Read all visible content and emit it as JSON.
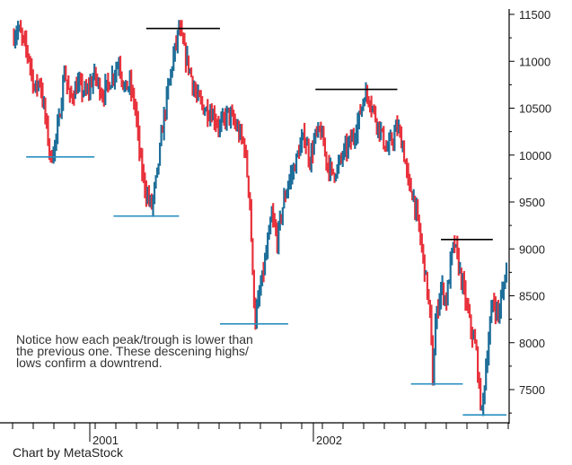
{
  "chart_data": {
    "type": "ohlc",
    "y_ticks": [
      7500,
      8000,
      8500,
      9000,
      9500,
      10000,
      10500,
      11000,
      11500
    ],
    "ylim": [
      7150,
      11650
    ],
    "x_tick_labels": [
      "2001",
      "2002"
    ],
    "series": [
      {
        "t": 0,
        "close": 11250
      },
      {
        "t": 2,
        "close": 11350
      },
      {
        "t": 4,
        "close": 11200
      },
      {
        "t": 6,
        "close": 11050
      },
      {
        "t": 8,
        "close": 10700
      },
      {
        "t": 10,
        "close": 10800
      },
      {
        "t": 12,
        "close": 10400
      },
      {
        "t": 14,
        "close": 9950
      },
      {
        "t": 15,
        "close": 10050
      },
      {
        "t": 17,
        "close": 10350
      },
      {
        "t": 19,
        "close": 10900
      },
      {
        "t": 21,
        "close": 10600
      },
      {
        "t": 24,
        "close": 10750
      },
      {
        "t": 27,
        "close": 10650
      },
      {
        "t": 30,
        "close": 10850
      },
      {
        "t": 33,
        "close": 10650
      },
      {
        "t": 36,
        "close": 10800
      },
      {
        "t": 39,
        "close": 11000
      },
      {
        "t": 41,
        "close": 10700
      },
      {
        "t": 43,
        "close": 10750
      },
      {
        "t": 45,
        "close": 10500
      },
      {
        "t": 47,
        "close": 9900
      },
      {
        "t": 49,
        "close": 9600
      },
      {
        "t": 51,
        "close": 9450
      },
      {
        "t": 53,
        "close": 9800
      },
      {
        "t": 55,
        "close": 10300
      },
      {
        "t": 57,
        "close": 10700
      },
      {
        "t": 59,
        "close": 11050
      },
      {
        "t": 61,
        "close": 11350
      },
      {
        "t": 63,
        "close": 11100
      },
      {
        "t": 65,
        "close": 10900
      },
      {
        "t": 67,
        "close": 10650
      },
      {
        "t": 70,
        "close": 10500
      },
      {
        "t": 73,
        "close": 10450
      },
      {
        "t": 76,
        "close": 10300
      },
      {
        "t": 79,
        "close": 10450
      },
      {
        "t": 82,
        "close": 10300
      },
      {
        "t": 85,
        "close": 10100
      },
      {
        "t": 87,
        "close": 9500
      },
      {
        "t": 88,
        "close": 8700
      },
      {
        "t": 89,
        "close": 8250
      },
      {
        "t": 91,
        "close": 8600
      },
      {
        "t": 93,
        "close": 8950
      },
      {
        "t": 95,
        "close": 9350
      },
      {
        "t": 97,
        "close": 9100
      },
      {
        "t": 99,
        "close": 9450
      },
      {
        "t": 101,
        "close": 9700
      },
      {
        "t": 103,
        "close": 9850
      },
      {
        "t": 105,
        "close": 10050
      },
      {
        "t": 107,
        "close": 10200
      },
      {
        "t": 109,
        "close": 9950
      },
      {
        "t": 111,
        "close": 10200
      },
      {
        "t": 113,
        "close": 10250
      },
      {
        "t": 115,
        "close": 9950
      },
      {
        "t": 117,
        "close": 9800
      },
      {
        "t": 119,
        "close": 9850
      },
      {
        "t": 121,
        "close": 10000
      },
      {
        "t": 123,
        "close": 10100
      },
      {
        "t": 125,
        "close": 10200
      },
      {
        "t": 127,
        "close": 10400
      },
      {
        "t": 129,
        "close": 10650
      },
      {
        "t": 131,
        "close": 10600
      },
      {
        "t": 133,
        "close": 10400
      },
      {
        "t": 135,
        "close": 10250
      },
      {
        "t": 137,
        "close": 10050
      },
      {
        "t": 139,
        "close": 10150
      },
      {
        "t": 141,
        "close": 10300
      },
      {
        "t": 143,
        "close": 10100
      },
      {
        "t": 145,
        "close": 9700
      },
      {
        "t": 147,
        "close": 9550
      },
      {
        "t": 149,
        "close": 9200
      },
      {
        "t": 151,
        "close": 8800
      },
      {
        "t": 153,
        "close": 8300
      },
      {
        "t": 154,
        "close": 7600
      },
      {
        "t": 155,
        "close": 8200
      },
      {
        "t": 157,
        "close": 8600
      },
      {
        "t": 159,
        "close": 8450
      },
      {
        "t": 161,
        "close": 8950
      },
      {
        "t": 162,
        "close": 9050
      },
      {
        "t": 164,
        "close": 8750
      },
      {
        "t": 166,
        "close": 8450
      },
      {
        "t": 168,
        "close": 8150
      },
      {
        "t": 170,
        "close": 7900
      },
      {
        "t": 171,
        "close": 7500
      },
      {
        "t": 172,
        "close": 7250
      },
      {
        "t": 174,
        "close": 7900
      },
      {
        "t": 176,
        "close": 8450
      },
      {
        "t": 178,
        "close": 8300
      },
      {
        "t": 180,
        "close": 8600
      },
      {
        "t": 181,
        "close": 8800
      }
    ],
    "peak_lines": [
      {
        "type": "peak",
        "value": 11350,
        "t_start": 49,
        "t_end": 76
      },
      {
        "type": "peak",
        "value": 10700,
        "t_start": 111,
        "t_end": 141
      },
      {
        "type": "peak",
        "value": 9100,
        "t_start": 157,
        "t_end": 176
      }
    ],
    "trough_lines": [
      {
        "type": "trough",
        "value": 9980,
        "t_start": 5,
        "t_end": 30
      },
      {
        "type": "trough",
        "value": 9350,
        "t_start": 37,
        "t_end": 61
      },
      {
        "type": "trough",
        "value": 8200,
        "t_start": 76,
        "t_end": 101
      },
      {
        "type": "trough",
        "value": 7560,
        "t_start": 146,
        "t_end": 165
      },
      {
        "type": "trough",
        "value": 7230,
        "t_start": 165,
        "t_end": 181
      }
    ],
    "colors": {
      "up": "#1f6f9a",
      "down": "#e8323c",
      "peak_line": "#000000",
      "trough_line": "#2a8fc0"
    }
  },
  "annotation": {
    "line1": "Notice how each peak/trough is lower than",
    "line2": "the previous one. These descening highs/",
    "line3": "lows confirm a downtrend."
  },
  "credit": "Chart by MetaStock"
}
